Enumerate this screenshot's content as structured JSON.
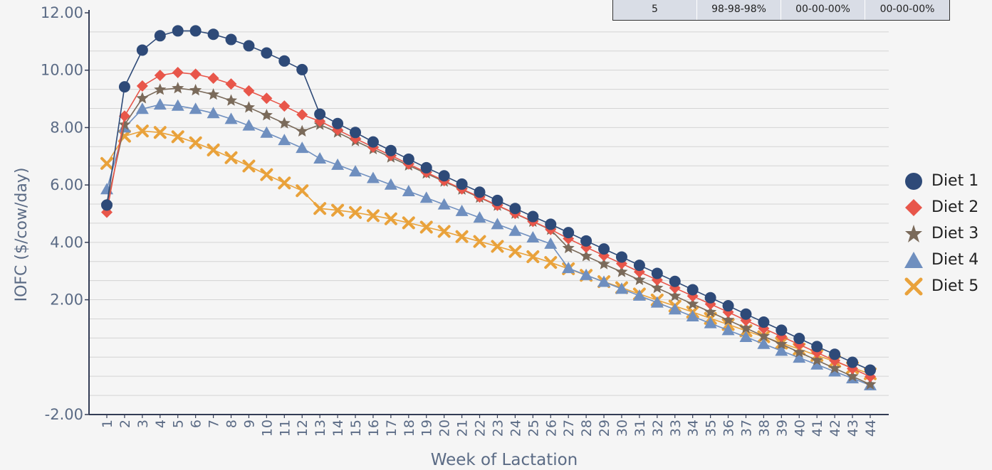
{
  "table": {
    "cells": [
      "5",
      "98-98-98%",
      "00-00-00%",
      "00-00-00%"
    ]
  },
  "chart_data": {
    "type": "line",
    "xlabel": "Week of Lactation",
    "ylabel": "IOFC ($/cow/day)",
    "ylim": [
      -2.0,
      12.0
    ],
    "yticks": [
      "12.00",
      "10.00",
      "8.00",
      "6.00",
      "4.00",
      "2.00",
      "-2.00"
    ],
    "y_tick_values": [
      12,
      10,
      8,
      6,
      4,
      2,
      -2
    ],
    "grid": true,
    "legend_position": "right",
    "categories": [
      "1",
      "2",
      "3",
      "4",
      "5",
      "6",
      "7",
      "8",
      "9",
      "10",
      "11",
      "12",
      "13",
      "14",
      "15",
      "16",
      "17",
      "18",
      "19",
      "20",
      "21",
      "22",
      "23",
      "24",
      "25",
      "26",
      "27",
      "28",
      "29",
      "30",
      "31",
      "32",
      "33",
      "34",
      "35",
      "36",
      "37",
      "38",
      "39",
      "40",
      "41",
      "42",
      "43",
      "44"
    ],
    "series": [
      {
        "name": "Diet 1",
        "color": "#2e4a78",
        "marker": "circle",
        "values": [
          5.3,
          9.42,
          10.7,
          11.2,
          11.37,
          11.37,
          11.25,
          11.07,
          10.85,
          10.6,
          10.32,
          10.02,
          8.47,
          8.14,
          7.83,
          7.5,
          7.2,
          6.9,
          6.6,
          6.32,
          6.03,
          5.75,
          5.46,
          5.18,
          4.9,
          4.63,
          4.34,
          4.05,
          3.77,
          3.49,
          3.2,
          2.92,
          2.64,
          2.35,
          2.07,
          1.79,
          1.5,
          1.22,
          0.94,
          0.65,
          0.37,
          0.1,
          -0.18,
          -0.45
        ]
      },
      {
        "name": "Diet 2",
        "color": "#e8564a",
        "marker": "diamond",
        "values": [
          5.05,
          8.4,
          9.45,
          9.82,
          9.92,
          9.86,
          9.72,
          9.52,
          9.28,
          9.02,
          8.75,
          8.45,
          8.22,
          7.92,
          7.62,
          7.32,
          7.03,
          6.73,
          6.44,
          6.15,
          5.86,
          5.58,
          5.29,
          5.01,
          4.73,
          4.45,
          4.13,
          3.83,
          3.54,
          3.26,
          2.97,
          2.69,
          2.41,
          2.13,
          1.85,
          1.57,
          1.28,
          1.0,
          0.72,
          0.44,
          0.16,
          -0.12,
          -0.4,
          -0.68
        ]
      },
      {
        "name": "Diet 3",
        "color": "#7a6a5a",
        "marker": "star",
        "values": [
          5.3,
          8.1,
          9.02,
          9.32,
          9.37,
          9.3,
          9.15,
          8.94,
          8.7,
          8.43,
          8.15,
          7.87,
          8.1,
          7.83,
          7.53,
          7.25,
          6.96,
          6.68,
          6.4,
          6.12,
          5.84,
          5.56,
          5.28,
          5.0,
          4.72,
          4.44,
          3.8,
          3.52,
          3.24,
          2.97,
          2.69,
          2.41,
          2.13,
          1.85,
          1.57,
          1.29,
          1.01,
          0.73,
          0.45,
          0.17,
          -0.11,
          -0.39,
          -0.67,
          -0.95
        ]
      },
      {
        "name": "Diet 4",
        "color": "#6f8fbf",
        "marker": "triangle",
        "values": [
          5.85,
          8.0,
          8.65,
          8.8,
          8.76,
          8.65,
          8.5,
          8.3,
          8.07,
          7.82,
          7.56,
          7.29,
          6.92,
          6.7,
          6.47,
          6.24,
          6.01,
          5.78,
          5.55,
          5.32,
          5.09,
          4.86,
          4.63,
          4.4,
          4.17,
          3.95,
          3.1,
          2.86,
          2.62,
          2.38,
          2.14,
          1.9,
          1.66,
          1.42,
          1.18,
          0.94,
          0.7,
          0.46,
          0.22,
          -0.02,
          -0.26,
          -0.5,
          -0.74,
          -0.98
        ]
      },
      {
        "name": "Diet 5",
        "color": "#e9a23b",
        "marker": "x",
        "values": [
          6.75,
          7.7,
          7.88,
          7.83,
          7.68,
          7.47,
          7.22,
          6.95,
          6.66,
          6.36,
          6.07,
          5.8,
          5.18,
          5.12,
          5.04,
          4.93,
          4.82,
          4.68,
          4.53,
          4.38,
          4.2,
          4.03,
          3.86,
          3.68,
          3.5,
          3.3,
          3.08,
          2.85,
          2.63,
          2.42,
          2.2,
          1.99,
          1.78,
          1.57,
          1.35,
          1.14,
          0.92,
          0.71,
          0.49,
          0.28,
          0.06,
          -0.15,
          -0.37,
          -0.58
        ]
      }
    ]
  }
}
